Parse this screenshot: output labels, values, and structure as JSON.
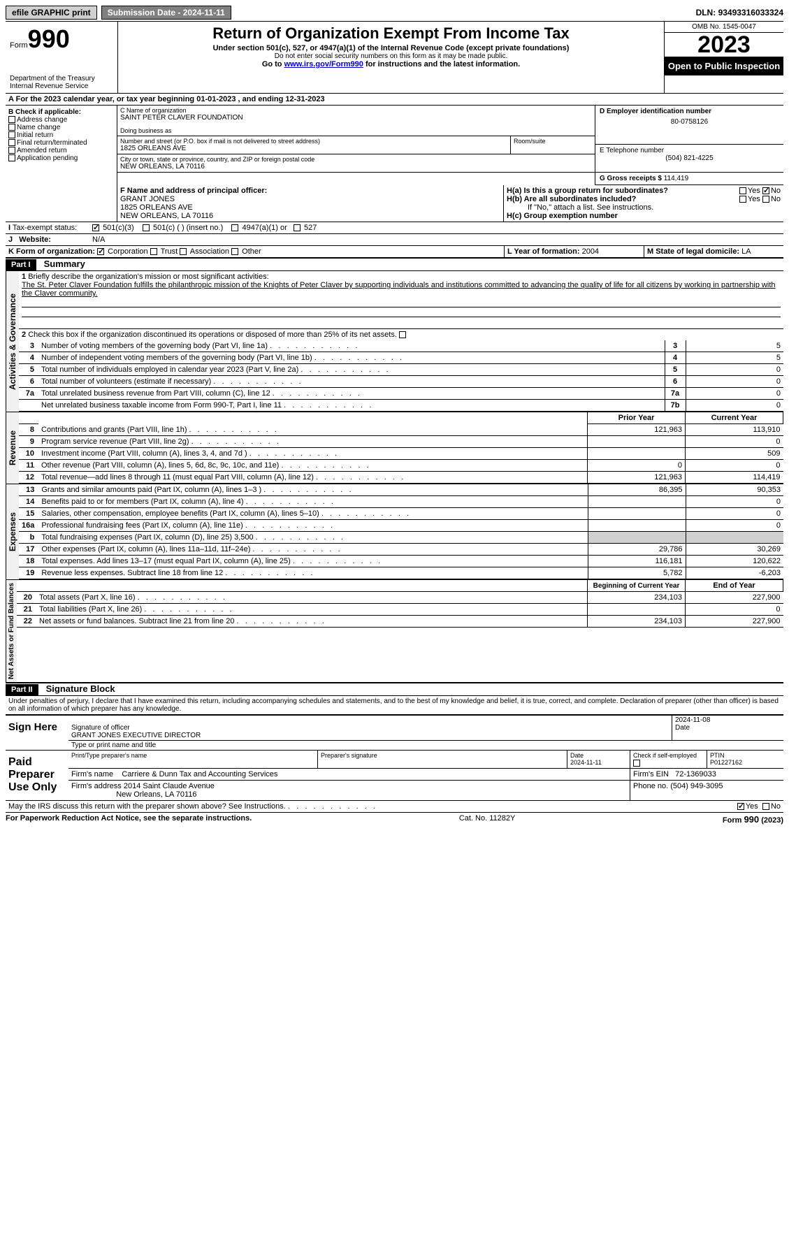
{
  "topbar": {
    "efile": "efile GRAPHIC print",
    "subdate_label": "Submission Date - ",
    "subdate": "2024-11-11",
    "dln_label": "DLN: ",
    "dln": "93493316033324"
  },
  "header": {
    "form_label": "Form",
    "form_num": "990",
    "dept": "Department of the Treasury Internal Revenue Service",
    "title": "Return of Organization Exempt From Income Tax",
    "sub1": "Under section 501(c), 527, or 4947(a)(1) of the Internal Revenue Code (except private foundations)",
    "sub2": "Do not enter social security numbers on this form as it may be made public.",
    "sub3_pre": "Go to ",
    "sub3_link": "www.irs.gov/Form990",
    "sub3_post": " for instructions and the latest information.",
    "omb": "OMB No. 1545-0047",
    "year": "2023",
    "public": "Open to Public Inspection"
  },
  "A": {
    "text": "For the 2023 calendar year, or tax year beginning ",
    "begin": "01-01-2023",
    "mid": " , and ending ",
    "end": "12-31-2023"
  },
  "B": {
    "label": "B Check if applicable:",
    "opts": [
      "Address change",
      "Name change",
      "Initial return",
      "Final return/terminated",
      "Amended return",
      "Application pending"
    ]
  },
  "C": {
    "name_label": "C Name of organization",
    "name": "SAINT PETER CLAVER FOUNDATION",
    "dba_label": "Doing business as",
    "addr_label": "Number and street (or P.O. box if mail is not delivered to street address)",
    "room_label": "Room/suite",
    "addr": "1825 ORLEANS AVE",
    "city_label": "City or town, state or province, country, and ZIP or foreign postal code",
    "city": "NEW ORLEANS, LA  70116"
  },
  "D": {
    "label": "D Employer identification number",
    "val": "80-0758126"
  },
  "E": {
    "label": "E Telephone number",
    "val": "(504) 821-4225"
  },
  "G": {
    "label": "G Gross receipts $",
    "val": "114,419"
  },
  "F": {
    "label": "F  Name and address of principal officer:",
    "name": "GRANT JONES",
    "addr1": "1825 ORLEANS AVE",
    "addr2": "NEW ORLEANS, LA  70116"
  },
  "H": {
    "a": "H(a)  Is this a group return for subordinates?",
    "b": "H(b)  Are all subordinates included?",
    "b_note": "If \"No,\" attach a list. See instructions.",
    "c": "H(c)  Group exemption number",
    "yes": "Yes",
    "no": "No"
  },
  "I": {
    "label": "Tax-exempt status:",
    "opts": [
      "501(c)(3)",
      "501(c) (  ) (insert no.)",
      "4947(a)(1) or",
      "527"
    ]
  },
  "J": {
    "label": "Website:",
    "val": "N/A"
  },
  "K": {
    "label": "K Form of organization:",
    "opts": [
      "Corporation",
      "Trust",
      "Association",
      "Other"
    ]
  },
  "L": {
    "label": "L Year of formation:",
    "val": "2004"
  },
  "M": {
    "label": "M State of legal domicile:",
    "val": "LA"
  },
  "part1": {
    "num": "Part I",
    "title": "Summary",
    "sections": {
      "gov": "Activities & Governance",
      "rev": "Revenue",
      "exp": "Expenses",
      "net": "Net Assets or Fund Balances"
    },
    "l1_label": "Briefly describe the organization's mission or most significant activities:",
    "l1_text": "The St. Peter Claver Foundation fulfills the philanthropic mission of the Knights of Peter Claver by supporting individuals and institutions committed to advancing the quality of life for all citizens by working in partnership with the Claver community.",
    "l2": "Check this box  if the organization discontinued its operations or disposed of more than 25% of its net assets.",
    "gov_lines": [
      {
        "n": "3",
        "t": "Number of voting members of the governing body (Part VI, line 1a)",
        "box": "3",
        "v": "5"
      },
      {
        "n": "4",
        "t": "Number of independent voting members of the governing body (Part VI, line 1b)",
        "box": "4",
        "v": "5"
      },
      {
        "n": "5",
        "t": "Total number of individuals employed in calendar year 2023 (Part V, line 2a)",
        "box": "5",
        "v": "0"
      },
      {
        "n": "6",
        "t": "Total number of volunteers (estimate if necessary)",
        "box": "6",
        "v": "0"
      },
      {
        "n": "7a",
        "t": "Total unrelated business revenue from Part VIII, column (C), line 12",
        "box": "7a",
        "v": "0"
      },
      {
        "n": "",
        "t": "Net unrelated business taxable income from Form 990-T, Part I, line 11",
        "box": "7b",
        "v": "0"
      }
    ],
    "col_prior": "Prior Year",
    "col_curr": "Current Year",
    "col_boy": "Beginning of Current Year",
    "col_eoy": "End of Year",
    "rev_lines": [
      {
        "n": "8",
        "t": "Contributions and grants (Part VIII, line 1h)",
        "p": "121,963",
        "c": "113,910"
      },
      {
        "n": "9",
        "t": "Program service revenue (Part VIII, line 2g)",
        "p": "",
        "c": "0"
      },
      {
        "n": "10",
        "t": "Investment income (Part VIII, column (A), lines 3, 4, and 7d )",
        "p": "",
        "c": "509"
      },
      {
        "n": "11",
        "t": "Other revenue (Part VIII, column (A), lines 5, 6d, 8c, 9c, 10c, and 11e)",
        "p": "0",
        "c": "0"
      },
      {
        "n": "12",
        "t": "Total revenue—add lines 8 through 11 (must equal Part VIII, column (A), line 12)",
        "p": "121,963",
        "c": "114,419"
      }
    ],
    "exp_lines": [
      {
        "n": "13",
        "t": "Grants and similar amounts paid (Part IX, column (A), lines 1–3 )",
        "p": "86,395",
        "c": "90,353"
      },
      {
        "n": "14",
        "t": "Benefits paid to or for members (Part IX, column (A), line 4)",
        "p": "",
        "c": "0"
      },
      {
        "n": "15",
        "t": "Salaries, other compensation, employee benefits (Part IX, column (A), lines 5–10)",
        "p": "",
        "c": "0"
      },
      {
        "n": "16a",
        "t": "Professional fundraising fees (Part IX, column (A), line 11e)",
        "p": "",
        "c": "0"
      },
      {
        "n": "b",
        "t": "Total fundraising expenses (Part IX, column (D), line 25) 3,500",
        "p": "__shade__",
        "c": "__shade__"
      },
      {
        "n": "17",
        "t": "Other expenses (Part IX, column (A), lines 11a–11d, 11f–24e)",
        "p": "29,786",
        "c": "30,269"
      },
      {
        "n": "18",
        "t": "Total expenses. Add lines 13–17 (must equal Part IX, column (A), line 25)",
        "p": "116,181",
        "c": "120,622"
      },
      {
        "n": "19",
        "t": "Revenue less expenses. Subtract line 18 from line 12",
        "p": "5,782",
        "c": "-6,203"
      }
    ],
    "net_lines": [
      {
        "n": "20",
        "t": "Total assets (Part X, line 16)",
        "p": "234,103",
        "c": "227,900"
      },
      {
        "n": "21",
        "t": "Total liabilities (Part X, line 26)",
        "p": "",
        "c": "0"
      },
      {
        "n": "22",
        "t": "Net assets or fund balances. Subtract line 21 from line 20",
        "p": "234,103",
        "c": "227,900"
      }
    ]
  },
  "part2": {
    "num": "Part II",
    "title": "Signature Block",
    "decl": "Under penalties of perjury, I declare that I have examined this return, including accompanying schedules and statements, and to the best of my knowledge and belief, it is true, correct, and complete. Declaration of preparer (other than officer) is based on all information of which preparer has any knowledge."
  },
  "sign": {
    "here": "Sign Here",
    "sig_label": "Signature of officer",
    "date_label": "Date",
    "date": "2024-11-08",
    "name": "GRANT JONES  EXECUTIVE DIRECTOR",
    "name_label": "Type or print name and title"
  },
  "paid": {
    "label": "Paid Preparer Use Only",
    "h1": "Print/Type preparer's name",
    "h2": "Preparer's signature",
    "h3": "Date",
    "h3v": "2024-11-11",
    "h4": "Check  if self-employed",
    "h5": "PTIN",
    "h5v": "P01227162",
    "firm_label": "Firm's name",
    "firm": "Carriere & Dunn Tax and Accounting Services",
    "ein_label": "Firm's EIN",
    "ein": "72-1369033",
    "addr_label": "Firm's address",
    "addr1": "2014 Saint Claude Avenue",
    "addr2": "New Orleans, LA  70116",
    "phone_label": "Phone no.",
    "phone": "(504) 949-3095"
  },
  "discuss": {
    "text": "May the IRS discuss this return with the preparer shown above? See Instructions.",
    "yes": "Yes",
    "no": "No"
  },
  "footer": {
    "l": "For Paperwork Reduction Act Notice, see the separate instructions.",
    "m": "Cat. No. 11282Y",
    "r": "Form 990 (2023)"
  }
}
